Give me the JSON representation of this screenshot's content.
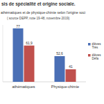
{
  "chart_data": {
    "type": "bar",
    "title": "sis de spécialité et origine sociale.",
    "subtitle": "athématiques et de physique-chimie selon l'origine soci",
    "annotations": [
      "( source DEPP, note 19-48, novembre 2019)"
    ],
    "categories": [
      "athématiques",
      "Physique-chimie"
    ],
    "series": [
      {
        "name": "élèves Très",
        "color": "#4a6fb5",
        "values": [
          77,
          52.6
        ],
        "value_labels": [
          "77",
          "52,6"
        ]
      },
      {
        "name": "élèves Défa",
        "color": "#c0504d",
        "values": [
          61.9,
          41
        ],
        "value_labels": [
          "61,9",
          "41"
        ]
      }
    ],
    "ylim": [
      30,
      80
    ],
    "data_labels": true,
    "tick_labels": "x",
    "legend": "right"
  }
}
